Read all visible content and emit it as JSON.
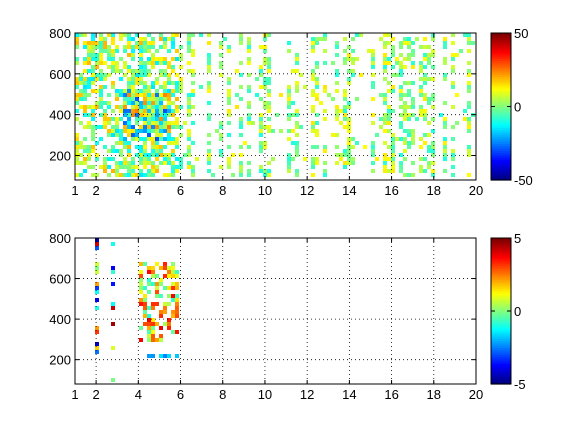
{
  "chart_data": [
    {
      "type": "heatmap",
      "title": "",
      "xlabel": "",
      "ylabel": "",
      "xlim": [
        1,
        20
      ],
      "ylim": [
        80,
        800
      ],
      "xticks": [
        1,
        2,
        4,
        6,
        8,
        10,
        12,
        14,
        16,
        18,
        20
      ],
      "yticks": [
        200,
        400,
        600,
        800
      ],
      "grid": true,
      "colormap": "jet",
      "colorbar": {
        "min": -50,
        "max": 50,
        "ticks": [
          -50,
          0,
          50
        ]
      },
      "regions": [
        {
          "x": [
            1,
            6
          ],
          "y": [
            80,
            800
          ],
          "density": 0.55,
          "value_range": [
            -15,
            20
          ],
          "description": "dense speckle"
        },
        {
          "x": [
            3.2,
            5.6
          ],
          "y": [
            280,
            520
          ],
          "density": 0.9,
          "value_range": [
            -30,
            25
          ],
          "description": "dense core"
        },
        {
          "x": [
            6,
            20
          ],
          "y": [
            80,
            800
          ],
          "density": 0.18,
          "value_range": [
            -10,
            15
          ],
          "description": "sparse vertical streaks"
        }
      ]
    },
    {
      "type": "heatmap",
      "title": "",
      "xlabel": "",
      "ylabel": "",
      "xlim": [
        1,
        20
      ],
      "ylim": [
        80,
        800
      ],
      "xticks": [
        1,
        2,
        4,
        6,
        8,
        10,
        12,
        14,
        16,
        18,
        20
      ],
      "yticks": [
        200,
        400,
        600,
        800
      ],
      "grid": true,
      "colormap": "jet",
      "colorbar": {
        "min": -5,
        "max": 5,
        "ticks": [
          -5,
          0,
          5
        ]
      },
      "regions": [
        {
          "x": [
            4,
            6
          ],
          "y": [
            280,
            680
          ],
          "density": 0.5,
          "value_range": [
            -1,
            4
          ],
          "description": "main cluster"
        },
        {
          "x": [
            4.5,
            5.9
          ],
          "y": [
            200,
            230
          ],
          "density": 0.7,
          "value_range": [
            -2.5,
            -1.5
          ],
          "description": "cyan band"
        },
        {
          "x": [
            1.5,
            3.5
          ],
          "y": [
            80,
            800
          ],
          "density": 0.06,
          "value_range": [
            -5,
            5
          ],
          "description": "scattered vertical marks"
        }
      ]
    }
  ]
}
